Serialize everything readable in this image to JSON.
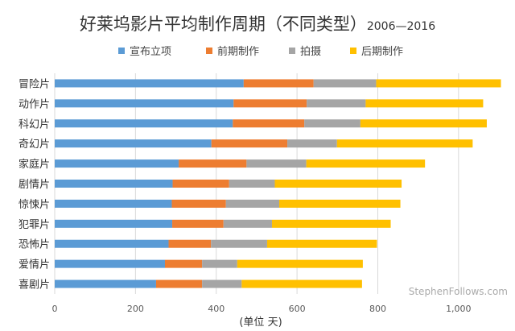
{
  "chart_data": {
    "type": "bar",
    "orientation": "horizontal",
    "stacked": true,
    "title": "好莱坞影片平均制作周期（不同类型）",
    "subtitle": "2006—2016",
    "xlabel": "(单位 天)",
    "ylabel": "",
    "xlim": [
      0,
      1100
    ],
    "xticks": [
      0,
      200,
      400,
      600,
      800,
      1000
    ],
    "xtick_labels": [
      "0",
      "200",
      "400",
      "600",
      "800",
      "1,000"
    ],
    "grid": true,
    "legend_position": "top",
    "categories": [
      "冒险片",
      "动作片",
      "科幻片",
      "奇幻片",
      "家庭片",
      "剧情片",
      "惊悚片",
      "犯罪片",
      "恐怖片",
      "爱情片",
      "喜剧片"
    ],
    "series": [
      {
        "name": "宣布立项",
        "color": "#5b9bd5",
        "values": [
          468,
          443,
          441,
          388,
          307,
          292,
          290,
          291,
          282,
          273,
          251
        ]
      },
      {
        "name": "前期制作",
        "color": "#ed7d31",
        "values": [
          173,
          181,
          177,
          188,
          168,
          140,
          134,
          127,
          105,
          92,
          114
        ]
      },
      {
        "name": "拍摄",
        "color": "#a5a5a5",
        "values": [
          155,
          146,
          139,
          123,
          148,
          113,
          132,
          120,
          139,
          87,
          98
        ]
      },
      {
        "name": "后期制作",
        "color": "#ffc000",
        "values": [
          309,
          291,
          313,
          336,
          294,
          314,
          300,
          294,
          272,
          311,
          298
        ]
      }
    ],
    "watermark": "StephenFollows.com"
  }
}
